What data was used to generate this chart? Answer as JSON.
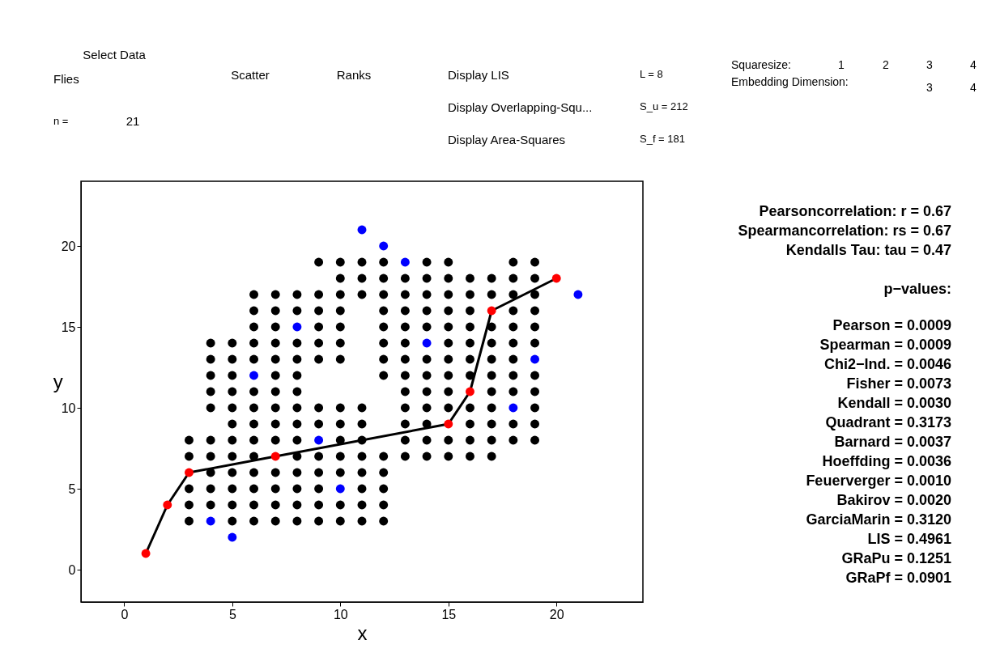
{
  "chart_data": {
    "type": "scatter",
    "xlabel": "x",
    "ylabel": "y",
    "xlim": [
      -2,
      24
    ],
    "ylim": [
      -2,
      24
    ],
    "xticks": [
      0,
      5,
      10,
      15,
      20
    ],
    "yticks": [
      0,
      5,
      10,
      15,
      20
    ],
    "grid": false,
    "series": [
      {
        "marker": "circle",
        "color": "#000000",
        "x": [
          9,
          10,
          11,
          12,
          14,
          15,
          18,
          19,
          10,
          11,
          12,
          13,
          14,
          15,
          16,
          17,
          18,
          19,
          6,
          7,
          8,
          9,
          10,
          11,
          12,
          13,
          14,
          15,
          16,
          17,
          18,
          19,
          6,
          7,
          8,
          9,
          10,
          12,
          13,
          14,
          15,
          16,
          18,
          19,
          6,
          7,
          9,
          10,
          12,
          13,
          14,
          15,
          16,
          17,
          18,
          19,
          4,
          5,
          6,
          7,
          8,
          9,
          10,
          12,
          13,
          15,
          16,
          17,
          18,
          19,
          4,
          5,
          6,
          7,
          8,
          9,
          10,
          12,
          13,
          14,
          15,
          16,
          17,
          18,
          4,
          5,
          7,
          8,
          12,
          13,
          14,
          15,
          16,
          17,
          18,
          19,
          4,
          5,
          6,
          7,
          8,
          13,
          14,
          15,
          17,
          18,
          19,
          4,
          5,
          6,
          7,
          8,
          9,
          10,
          11,
          13,
          14,
          15,
          16,
          17,
          19,
          5,
          6,
          7,
          8,
          9,
          10,
          11,
          13,
          14,
          16,
          17,
          18,
          19,
          3,
          4,
          5,
          6,
          7,
          8,
          10,
          11,
          13,
          14,
          15,
          16,
          17,
          18,
          19,
          3,
          4,
          5,
          6,
          8,
          9,
          10,
          11,
          12,
          13,
          14,
          15,
          16,
          17,
          4,
          5,
          6,
          7,
          8,
          9,
          10,
          11,
          12,
          3,
          4,
          5,
          6,
          7,
          8,
          9,
          11,
          12,
          3,
          4,
          5,
          6,
          7,
          8,
          9,
          10,
          11,
          12,
          3,
          5,
          6,
          7,
          8,
          9,
          10,
          11,
          12
        ],
        "values": [
          19,
          19,
          19,
          19,
          19,
          19,
          19,
          19,
          18,
          18,
          18,
          18,
          18,
          18,
          18,
          18,
          18,
          18,
          17,
          17,
          17,
          17,
          17,
          17,
          17,
          17,
          17,
          17,
          17,
          17,
          17,
          17,
          16,
          16,
          16,
          16,
          16,
          16,
          16,
          16,
          16,
          16,
          16,
          16,
          15,
          15,
          15,
          15,
          15,
          15,
          15,
          15,
          15,
          15,
          15,
          15,
          14,
          14,
          14,
          14,
          14,
          14,
          14,
          14,
          14,
          14,
          14,
          14,
          14,
          14,
          13,
          13,
          13,
          13,
          13,
          13,
          13,
          13,
          13,
          13,
          13,
          13,
          13,
          13,
          12,
          12,
          12,
          12,
          12,
          12,
          12,
          12,
          12,
          12,
          12,
          12,
          11,
          11,
          11,
          11,
          11,
          11,
          11,
          11,
          11,
          11,
          11,
          10,
          10,
          10,
          10,
          10,
          10,
          10,
          10,
          10,
          10,
          10,
          10,
          10,
          10,
          9,
          9,
          9,
          9,
          9,
          9,
          9,
          9,
          9,
          9,
          9,
          9,
          9,
          8,
          8,
          8,
          8,
          8,
          8,
          8,
          8,
          8,
          8,
          8,
          8,
          8,
          8,
          8,
          7,
          7,
          7,
          7,
          7,
          7,
          7,
          7,
          7,
          7,
          7,
          7,
          7,
          7,
          6,
          6,
          6,
          6,
          6,
          6,
          6,
          6,
          6,
          5,
          5,
          5,
          5,
          5,
          5,
          5,
          5,
          5,
          4,
          4,
          4,
          4,
          4,
          4,
          4,
          4,
          4,
          4,
          3,
          3,
          3,
          3,
          3,
          3,
          3,
          3,
          3
        ]
      },
      {
        "type": "line",
        "marker": "none",
        "color": "#000000",
        "x": [
          1,
          2,
          3,
          7,
          15,
          16,
          17,
          20
        ],
        "values": [
          1,
          4,
          6,
          7,
          9,
          11,
          16,
          18
        ]
      },
      {
        "marker": "circle",
        "color": "#ff0000",
        "x": [
          1,
          2,
          3,
          7,
          15,
          16,
          17,
          20
        ],
        "values": [
          1,
          4,
          6,
          7,
          9,
          11,
          16,
          18
        ]
      },
      {
        "marker": "circle",
        "color": "#0000ff",
        "x": [
          4,
          5,
          6,
          8,
          9,
          10,
          11,
          12,
          13,
          14,
          18,
          19,
          21
        ],
        "values": [
          3,
          2,
          12,
          15,
          8,
          5,
          21,
          20,
          19,
          14,
          10,
          13,
          17
        ]
      }
    ],
    "annotations": [
      "Select Data",
      "Flies",
      "n =",
      "21",
      "Scatter",
      "Ranks",
      "Display LIS",
      "Display Overlapping-Squ...",
      "Display Area-Squares",
      "L = 8",
      "S_u = 212",
      "S_f = 181",
      "Squaresize:",
      "1",
      "2",
      "3",
      "4",
      "Embedding Dimension:",
      "3",
      "4",
      "Pearsoncorrelation: r = 0.67",
      "Spearmancorrelation: rs = 0.67",
      "Kendalls Tau: tau = 0.47",
      "p−values:",
      "Pearson = 0.0009",
      "Spearman = 0.0009",
      "Chi2−Ind. = 0.0046",
      "Fisher = 0.0073",
      "Kendall = 0.0030",
      "Quadrant = 0.3173",
      "Barnard = 0.0037",
      "Hoeffding = 0.0036",
      "Feuerverger = 0.0010",
      "Bakirov = 0.0020",
      "GarciaMarin = 0.3120",
      "LIS = 0.4961",
      "GRaPu = 0.1251",
      "GRaPf = 0.0901"
    ]
  }
}
